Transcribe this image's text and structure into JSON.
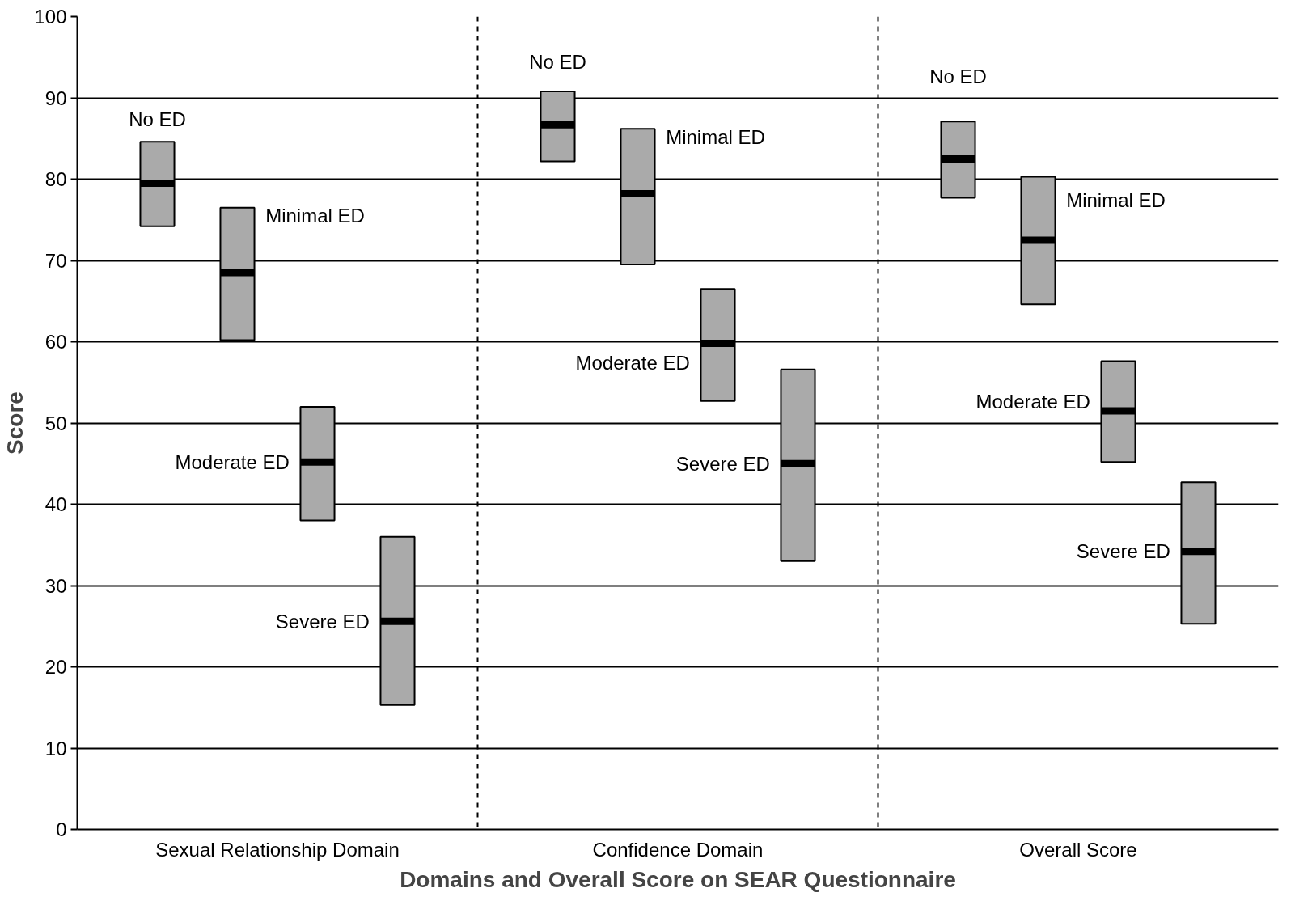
{
  "chart_data": {
    "type": "box",
    "xlabel": "Domains and Overall Score on SEAR Questionnaire",
    "ylabel": "Score",
    "categories": [
      "Sexual Relationship Domain",
      "Confidence Domain",
      "Overall Score"
    ],
    "series": [
      {
        "name": "No ED",
        "color": "#aaaaaa",
        "boxes": [
          {
            "low": 74.2,
            "q1": 74.2,
            "median": 79.5,
            "q3": 84.6,
            "high": 84.6
          },
          {
            "low": 82.2,
            "q1": 82.2,
            "median": 86.7,
            "q3": 90.8,
            "high": 90.8
          },
          {
            "low": 77.7,
            "q1": 77.7,
            "median": 82.5,
            "q3": 87.1,
            "high": 87.1
          }
        ]
      },
      {
        "name": "Minimal ED",
        "color": "#aaaaaa",
        "boxes": [
          {
            "low": 60.2,
            "q1": 60.2,
            "median": 68.5,
            "q3": 76.5,
            "high": 76.5
          },
          {
            "low": 69.5,
            "q1": 69.5,
            "median": 78.2,
            "q3": 86.2,
            "high": 86.2
          },
          {
            "low": 64.6,
            "q1": 64.6,
            "median": 72.5,
            "q3": 80.3,
            "high": 80.3
          }
        ]
      },
      {
        "name": "Moderate ED",
        "color": "#aaaaaa",
        "boxes": [
          {
            "low": 38,
            "q1": 38,
            "median": 45.2,
            "q3": 52,
            "high": 52
          },
          {
            "low": 52.7,
            "q1": 52.7,
            "median": 59.8,
            "q3": 66.5,
            "high": 66.5
          },
          {
            "low": 45.2,
            "q1": 45.2,
            "median": 51.5,
            "q3": 57.6,
            "high": 57.6
          }
        ]
      },
      {
        "name": "Severe ED",
        "color": "#aaaaaa",
        "boxes": [
          {
            "low": 15.3,
            "q1": 15.3,
            "median": 25.6,
            "q3": 36,
            "high": 36
          },
          {
            "low": 33,
            "q1": 33,
            "median": 45,
            "q3": 56.6,
            "high": 56.6
          },
          {
            "low": 25.3,
            "q1": 25.3,
            "median": 34.2,
            "q3": 42.7,
            "high": 42.7
          }
        ]
      }
    ],
    "ylim": [
      0,
      100
    ],
    "yticks": [
      0,
      10,
      20,
      30,
      40,
      50,
      60,
      70,
      80,
      90,
      100
    ],
    "grid": "y"
  }
}
